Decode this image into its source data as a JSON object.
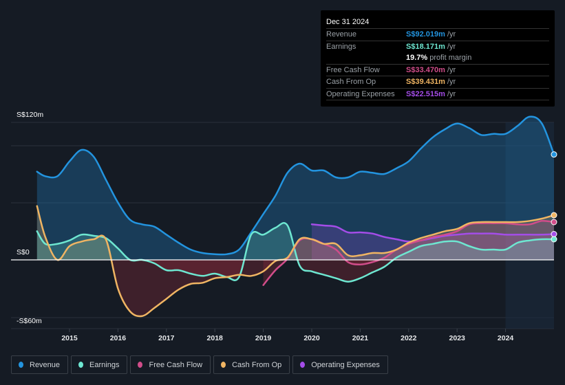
{
  "tooltip": {
    "date": "Dec 31 2024",
    "rows": [
      {
        "label": "Revenue",
        "value": "S$92.019m",
        "unit": "/yr",
        "color": "#2394df"
      },
      {
        "label": "Earnings",
        "value": "S$18.171m",
        "unit": "/yr",
        "color": "#6ee7d1"
      },
      {
        "label": "",
        "value": "19.7%",
        "unit": "profit margin",
        "color": "#ffffff"
      },
      {
        "label": "Free Cash Flow",
        "value": "S$33.470m",
        "unit": "/yr",
        "color": "#d14d8a"
      },
      {
        "label": "Cash From Op",
        "value": "S$39.431m",
        "unit": "/yr",
        "color": "#f0b563"
      },
      {
        "label": "Operating Expenses",
        "value": "S$22.515m",
        "unit": "/yr",
        "color": "#a44de8"
      }
    ]
  },
  "legend": [
    {
      "label": "Revenue",
      "color": "#2394df"
    },
    {
      "label": "Earnings",
      "color": "#6ee7d1"
    },
    {
      "label": "Free Cash Flow",
      "color": "#d14d8a"
    },
    {
      "label": "Cash From Op",
      "color": "#f0b563"
    },
    {
      "label": "Operating Expenses",
      "color": "#a44de8"
    }
  ],
  "chart_data": {
    "type": "area",
    "title": "",
    "xlabel": "",
    "ylabel": "",
    "y_tick_labels": [
      {
        "value": 120,
        "label": "S$120m"
      },
      {
        "value": 0,
        "label": "S$0"
      },
      {
        "value": -60,
        "label": "-S$60m"
      }
    ],
    "ylim": [
      -60,
      120
    ],
    "x_ticks": [
      2015,
      2016,
      2017,
      2018,
      2019,
      2020,
      2021,
      2022,
      2023,
      2024
    ],
    "xlim": [
      2014.33,
      2025.0
    ],
    "highlight_from": 2024.0,
    "grid": true,
    "legend_position": "bottom",
    "series": [
      {
        "name": "Revenue",
        "color": "#2394df",
        "points": [
          [
            2014.33,
            77
          ],
          [
            2014.5,
            73
          ],
          [
            2014.75,
            73
          ],
          [
            2015.0,
            86
          ],
          [
            2015.25,
            96
          ],
          [
            2015.5,
            90
          ],
          [
            2015.75,
            70
          ],
          [
            2016.0,
            50
          ],
          [
            2016.25,
            35
          ],
          [
            2016.5,
            31
          ],
          [
            2016.75,
            29
          ],
          [
            2017.0,
            22
          ],
          [
            2017.25,
            15
          ],
          [
            2017.5,
            9
          ],
          [
            2017.75,
            6
          ],
          [
            2018.0,
            5
          ],
          [
            2018.25,
            5
          ],
          [
            2018.5,
            9
          ],
          [
            2018.75,
            24
          ],
          [
            2019.0,
            40
          ],
          [
            2019.25,
            56
          ],
          [
            2019.5,
            76
          ],
          [
            2019.75,
            84
          ],
          [
            2020.0,
            78
          ],
          [
            2020.25,
            78
          ],
          [
            2020.5,
            72
          ],
          [
            2020.75,
            72
          ],
          [
            2021.0,
            77
          ],
          [
            2021.25,
            76
          ],
          [
            2021.5,
            75
          ],
          [
            2021.75,
            80
          ],
          [
            2022.0,
            86
          ],
          [
            2022.25,
            97
          ],
          [
            2022.5,
            107
          ],
          [
            2022.75,
            114
          ],
          [
            2023.0,
            119
          ],
          [
            2023.25,
            115
          ],
          [
            2023.5,
            109
          ],
          [
            2023.75,
            110
          ],
          [
            2024.0,
            110
          ],
          [
            2024.25,
            117
          ],
          [
            2024.5,
            125
          ],
          [
            2024.75,
            119
          ],
          [
            2025.0,
            92
          ]
        ]
      },
      {
        "name": "Earnings",
        "color": "#6ee7d1",
        "points": [
          [
            2014.33,
            25
          ],
          [
            2014.5,
            14
          ],
          [
            2014.75,
            14
          ],
          [
            2015.0,
            17
          ],
          [
            2015.25,
            22
          ],
          [
            2015.5,
            21
          ],
          [
            2015.75,
            19
          ],
          [
            2016.0,
            10
          ],
          [
            2016.25,
            0
          ],
          [
            2016.5,
            0
          ],
          [
            2016.75,
            -3
          ],
          [
            2017.0,
            -9
          ],
          [
            2017.25,
            -9
          ],
          [
            2017.5,
            -12
          ],
          [
            2017.75,
            -14
          ],
          [
            2018.0,
            -12
          ],
          [
            2018.25,
            -15
          ],
          [
            2018.5,
            -15
          ],
          [
            2018.75,
            22
          ],
          [
            2019.0,
            22
          ],
          [
            2019.25,
            28
          ],
          [
            2019.5,
            30
          ],
          [
            2019.75,
            -5
          ],
          [
            2020.0,
            -10
          ],
          [
            2020.25,
            -13
          ],
          [
            2020.5,
            -16
          ],
          [
            2020.75,
            -19
          ],
          [
            2021.0,
            -16
          ],
          [
            2021.25,
            -11
          ],
          [
            2021.5,
            -6
          ],
          [
            2021.75,
            2
          ],
          [
            2022.0,
            7
          ],
          [
            2022.25,
            12
          ],
          [
            2022.5,
            14
          ],
          [
            2022.75,
            16
          ],
          [
            2023.0,
            16
          ],
          [
            2023.25,
            12
          ],
          [
            2023.5,
            9
          ],
          [
            2023.75,
            9
          ],
          [
            2024.0,
            9
          ],
          [
            2024.25,
            15
          ],
          [
            2024.5,
            17
          ],
          [
            2024.75,
            18
          ],
          [
            2025.0,
            18
          ]
        ]
      },
      {
        "name": "Free Cash Flow",
        "color": "#d14d8a",
        "points": [
          [
            2019.0,
            -22
          ],
          [
            2019.25,
            -9
          ],
          [
            2019.5,
            1
          ],
          [
            2019.75,
            17
          ],
          [
            2020.0,
            18
          ],
          [
            2020.25,
            14
          ],
          [
            2020.5,
            9
          ],
          [
            2020.75,
            -2
          ],
          [
            2021.0,
            -4
          ],
          [
            2021.25,
            -2
          ],
          [
            2021.5,
            2
          ],
          [
            2021.75,
            9
          ],
          [
            2022.0,
            14
          ],
          [
            2022.25,
            17
          ],
          [
            2022.5,
            20
          ],
          [
            2022.75,
            22
          ],
          [
            2023.0,
            25
          ],
          [
            2023.25,
            31
          ],
          [
            2023.5,
            32
          ],
          [
            2023.75,
            32
          ],
          [
            2024.0,
            32
          ],
          [
            2024.25,
            31
          ],
          [
            2024.5,
            31
          ],
          [
            2024.75,
            34
          ],
          [
            2025.0,
            33
          ]
        ]
      },
      {
        "name": "Cash From Op",
        "color": "#f0b563",
        "points": [
          [
            2014.33,
            47
          ],
          [
            2014.5,
            20
          ],
          [
            2014.75,
            0
          ],
          [
            2015.0,
            12
          ],
          [
            2015.25,
            16
          ],
          [
            2015.5,
            18
          ],
          [
            2015.75,
            18
          ],
          [
            2016.0,
            -25
          ],
          [
            2016.25,
            -45
          ],
          [
            2016.5,
            -49
          ],
          [
            2016.75,
            -42
          ],
          [
            2017.0,
            -34
          ],
          [
            2017.25,
            -26
          ],
          [
            2017.5,
            -21
          ],
          [
            2017.75,
            -20
          ],
          [
            2018.0,
            -16
          ],
          [
            2018.25,
            -15
          ],
          [
            2018.5,
            -13
          ],
          [
            2018.75,
            -14
          ],
          [
            2019.0,
            -10
          ],
          [
            2019.25,
            -1
          ],
          [
            2019.5,
            2
          ],
          [
            2019.75,
            18
          ],
          [
            2020.0,
            18
          ],
          [
            2020.25,
            14
          ],
          [
            2020.5,
            14
          ],
          [
            2020.75,
            4
          ],
          [
            2021.0,
            4
          ],
          [
            2021.25,
            6
          ],
          [
            2021.5,
            6
          ],
          [
            2021.75,
            9
          ],
          [
            2022.0,
            15
          ],
          [
            2022.25,
            19
          ],
          [
            2022.5,
            22
          ],
          [
            2022.75,
            25
          ],
          [
            2023.0,
            27
          ],
          [
            2023.25,
            32
          ],
          [
            2023.5,
            33
          ],
          [
            2023.75,
            33
          ],
          [
            2024.0,
            33
          ],
          [
            2024.25,
            33
          ],
          [
            2024.5,
            34
          ],
          [
            2024.75,
            36
          ],
          [
            2025.0,
            39
          ]
        ]
      },
      {
        "name": "Operating Expenses",
        "color": "#a44de8",
        "points": [
          [
            2020.0,
            31
          ],
          [
            2020.25,
            30
          ],
          [
            2020.5,
            29
          ],
          [
            2020.75,
            24
          ],
          [
            2021.0,
            24
          ],
          [
            2021.25,
            23
          ],
          [
            2021.5,
            20
          ],
          [
            2021.75,
            18
          ],
          [
            2022.0,
            16
          ],
          [
            2022.25,
            17
          ],
          [
            2022.5,
            19
          ],
          [
            2022.75,
            21
          ],
          [
            2023.0,
            22
          ],
          [
            2023.25,
            23
          ],
          [
            2023.5,
            23
          ],
          [
            2023.75,
            23
          ],
          [
            2024.0,
            22
          ],
          [
            2024.25,
            22
          ],
          [
            2024.5,
            22
          ],
          [
            2024.75,
            22
          ],
          [
            2025.0,
            22.5
          ]
        ]
      }
    ]
  }
}
